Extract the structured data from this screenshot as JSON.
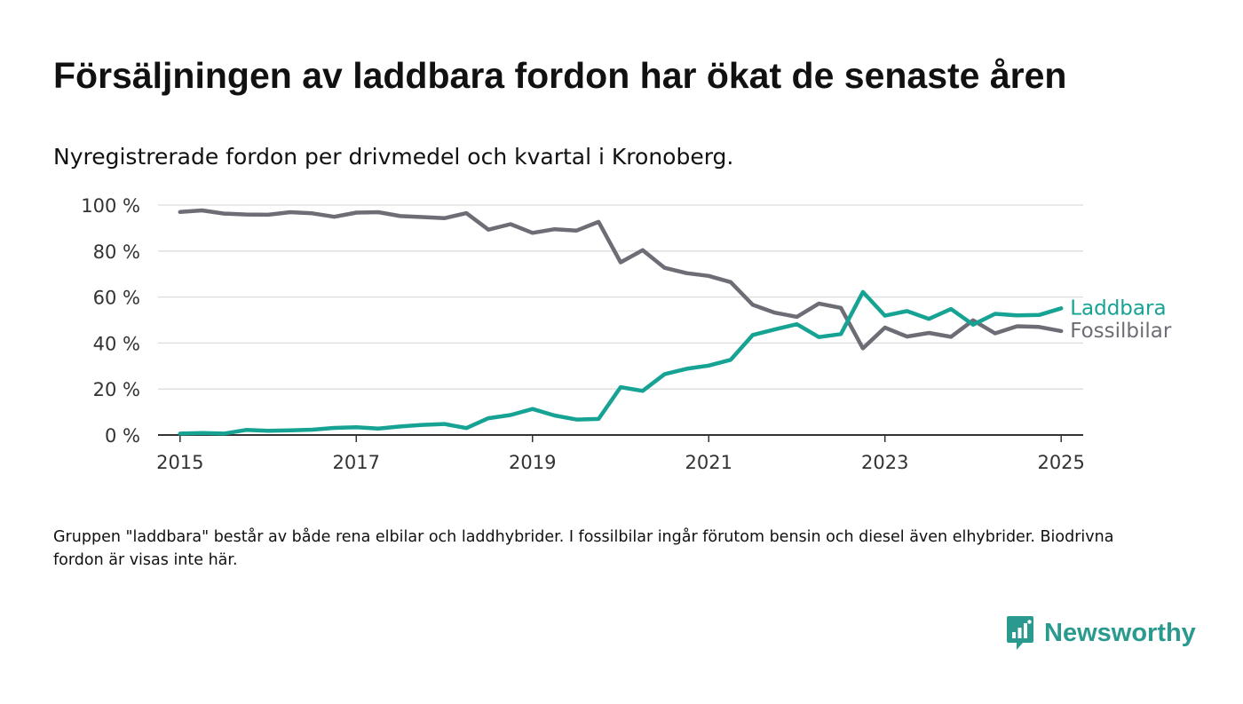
{
  "title": "Försäljningen av laddbara fordon har ökat de senaste åren",
  "subtitle": "Nyregistrerade fordon per drivmedel och kvartal i Kronoberg.",
  "footnote": "Gruppen \"laddbara\" består av både rena elbilar och laddhybrider. I fossilbilar ingår förutom bensin och diesel även elhybrider. Biodrivna fordon är visas inte här.",
  "brand": {
    "name": "Newsworthy",
    "color": "#2a9a8e",
    "icon": "newsworthy-logo-icon"
  },
  "chart_data": {
    "type": "line",
    "xlabel": "",
    "ylabel": "",
    "xlim": [
      2014.75,
      2025.25
    ],
    "ylim": [
      0,
      100
    ],
    "x_ticks": [
      2015,
      2017,
      2019,
      2021,
      2023,
      2025
    ],
    "x_tick_labels": [
      "2015",
      "2017",
      "2019",
      "2021",
      "2023",
      "2025"
    ],
    "y_ticks": [
      0,
      20,
      40,
      60,
      80,
      100
    ],
    "y_tick_labels": [
      "0 %",
      "20 %",
      "40 %",
      "60 %",
      "80 %",
      "100 %"
    ],
    "grid": true,
    "x": [
      2015,
      2015.25,
      2015.5,
      2015.75,
      2016,
      2016.25,
      2016.5,
      2016.75,
      2017,
      2017.25,
      2017.5,
      2017.75,
      2018,
      2018.25,
      2018.5,
      2018.75,
      2019,
      2019.25,
      2019.5,
      2019.75,
      2020,
      2020.25,
      2020.5,
      2020.75,
      2021,
      2021.25,
      2021.5,
      2021.75,
      2022,
      2022.25,
      2022.5,
      2022.75,
      2023,
      2023.25,
      2023.5,
      2023.75,
      2024,
      2024.25,
      2024.5,
      2024.75,
      2025
    ],
    "series": [
      {
        "name": "Fossilbilar",
        "color": "#6d6d75",
        "values": [
          97,
          97.7,
          96.3,
          95.9,
          95.8,
          96.9,
          96.4,
          94.9,
          96.7,
          96.9,
          95.2,
          94.8,
          94.3,
          96.5,
          89.3,
          91.7,
          87.9,
          89.5,
          88.9,
          92.7,
          75.1,
          80.4,
          72.7,
          70.4,
          69.2,
          66.5,
          56.6,
          53.2,
          51.4,
          57.2,
          55.3,
          37.7,
          46.7,
          42.8,
          44.4,
          42.7,
          49.9,
          44.2,
          47.3,
          47,
          45.2
        ]
      },
      {
        "name": "Laddbara",
        "color": "#16a394",
        "values": [
          0.6,
          0.9,
          0.6,
          2.2,
          1.8,
          2.0,
          2.3,
          3.1,
          3.4,
          2.8,
          3.7,
          4.4,
          4.8,
          3.0,
          7.3,
          8.7,
          11.3,
          8.5,
          6.7,
          7.0,
          20.8,
          19.2,
          26.5,
          28.8,
          30.2,
          32.7,
          43.5,
          45.9,
          48.2,
          42.6,
          43.9,
          62.2,
          51.9,
          53.9,
          50.5,
          54.8,
          48.0,
          52.7,
          52.0,
          52.2,
          55.1
        ]
      }
    ]
  }
}
